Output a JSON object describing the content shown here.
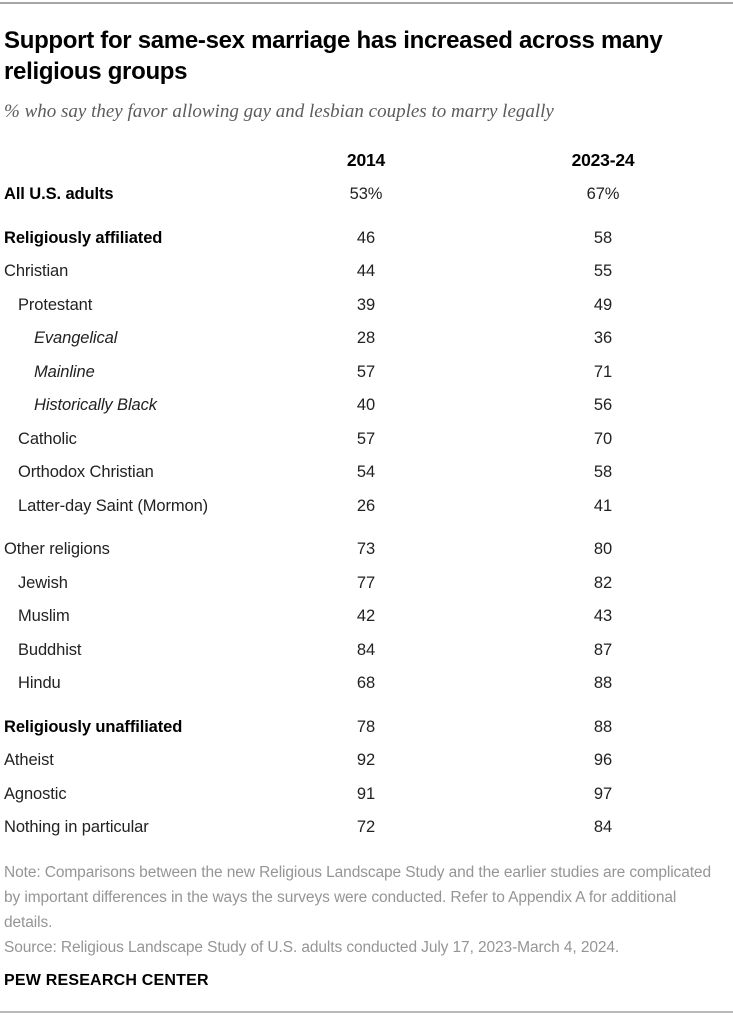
{
  "header": {
    "title": "Support for same-sex marriage has increased across many religious groups",
    "subtitle": "% who say they favor allowing gay and lesbian couples to marry legally"
  },
  "table": {
    "columns": [
      "2014",
      "2023-24"
    ],
    "rows": [
      {
        "label": "All U.S. adults",
        "v2014": "53%",
        "v2023_24": "67%",
        "bold": true,
        "italic": false,
        "indent": 0,
        "spacer": false
      },
      {
        "label": "Religiously affiliated",
        "v2014": "46",
        "v2023_24": "58",
        "bold": true,
        "italic": false,
        "indent": 0,
        "spacer": true
      },
      {
        "label": "Christian",
        "v2014": "44",
        "v2023_24": "55",
        "bold": false,
        "italic": false,
        "indent": 0,
        "spacer": false
      },
      {
        "label": "Protestant",
        "v2014": "39",
        "v2023_24": "49",
        "bold": false,
        "italic": false,
        "indent": 1,
        "spacer": false
      },
      {
        "label": "Evangelical",
        "v2014": "28",
        "v2023_24": "36",
        "bold": false,
        "italic": true,
        "indent": 2,
        "spacer": false
      },
      {
        "label": "Mainline",
        "v2014": "57",
        "v2023_24": "71",
        "bold": false,
        "italic": true,
        "indent": 2,
        "spacer": false
      },
      {
        "label": "Historically Black",
        "v2014": "40",
        "v2023_24": "56",
        "bold": false,
        "italic": true,
        "indent": 2,
        "spacer": false
      },
      {
        "label": "Catholic",
        "v2014": "57",
        "v2023_24": "70",
        "bold": false,
        "italic": false,
        "indent": 1,
        "spacer": false
      },
      {
        "label": "Orthodox Christian",
        "v2014": "54",
        "v2023_24": "58",
        "bold": false,
        "italic": false,
        "indent": 1,
        "spacer": false
      },
      {
        "label": "Latter-day Saint (Mormon)",
        "v2014": "26",
        "v2023_24": "41",
        "bold": false,
        "italic": false,
        "indent": 1,
        "spacer": false
      },
      {
        "label": "Other religions",
        "v2014": "73",
        "v2023_24": "80",
        "bold": false,
        "italic": false,
        "indent": 0,
        "spacer": true
      },
      {
        "label": "Jewish",
        "v2014": "77",
        "v2023_24": "82",
        "bold": false,
        "italic": false,
        "indent": 1,
        "spacer": false
      },
      {
        "label": "Muslim",
        "v2014": "42",
        "v2023_24": "43",
        "bold": false,
        "italic": false,
        "indent": 1,
        "spacer": false
      },
      {
        "label": "Buddhist",
        "v2014": "84",
        "v2023_24": "87",
        "bold": false,
        "italic": false,
        "indent": 1,
        "spacer": false
      },
      {
        "label": "Hindu",
        "v2014": "68",
        "v2023_24": "88",
        "bold": false,
        "italic": false,
        "indent": 1,
        "spacer": false
      },
      {
        "label": "Religiously unaffiliated",
        "v2014": "78",
        "v2023_24": "88",
        "bold": true,
        "italic": false,
        "indent": 0,
        "spacer": true
      },
      {
        "label": "Atheist",
        "v2014": "92",
        "v2023_24": "96",
        "bold": false,
        "italic": false,
        "indent": 0,
        "spacer": false
      },
      {
        "label": "Agnostic",
        "v2014": "91",
        "v2023_24": "97",
        "bold": false,
        "italic": false,
        "indent": 0,
        "spacer": false
      },
      {
        "label": "Nothing in particular",
        "v2014": "72",
        "v2023_24": "84",
        "bold": false,
        "italic": false,
        "indent": 0,
        "spacer": false
      }
    ]
  },
  "footer": {
    "note": "Note: Comparisons between the new Religious Landscape Study and the earlier studies are complicated by important differences in the ways the surveys were conducted. Refer to Appendix A for additional details.",
    "source": "Source: Religious Landscape Study of U.S. adults conducted July 17, 2023-March 4, 2024.",
    "org": "PEW RESEARCH CENTER"
  },
  "chart_data": {
    "type": "table",
    "title": "Support for same-sex marriage has increased across many religious groups",
    "subtitle": "% who say they favor allowing gay and lesbian couples to marry legally",
    "categories": [
      "All U.S. adults",
      "Religiously affiliated",
      "Christian",
      "Protestant",
      "Evangelical",
      "Mainline",
      "Historically Black",
      "Catholic",
      "Orthodox Christian",
      "Latter-day Saint (Mormon)",
      "Other religions",
      "Jewish",
      "Muslim",
      "Buddhist",
      "Hindu",
      "Religiously unaffiliated",
      "Atheist",
      "Agnostic",
      "Nothing in particular"
    ],
    "series": [
      {
        "name": "2014",
        "values": [
          53,
          46,
          44,
          39,
          28,
          57,
          40,
          57,
          54,
          26,
          73,
          77,
          42,
          84,
          68,
          78,
          92,
          91,
          72
        ]
      },
      {
        "name": "2023-24",
        "values": [
          67,
          58,
          55,
          49,
          36,
          71,
          56,
          70,
          58,
          41,
          80,
          82,
          43,
          87,
          88,
          88,
          96,
          97,
          84
        ]
      }
    ],
    "unit": "percent"
  },
  "colors": {
    "title_text": "#000000",
    "subtitle_text": "#5c5c5e",
    "body_text": "#222222",
    "note_text": "#959595",
    "rule": "#a6a6a6"
  }
}
